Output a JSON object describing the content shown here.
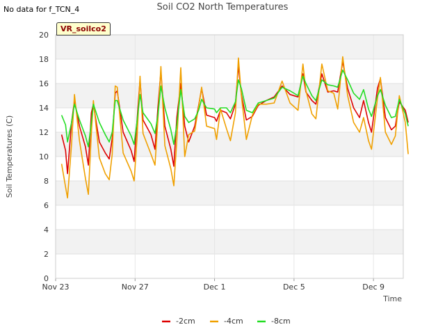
{
  "no_data_text": "No data for f_TCN_4",
  "badge_text": "VR_soilco2",
  "colors": {
    "s1": "#dd0000",
    "s2": "#f0a000",
    "s3": "#22dd22",
    "band": "#f2f2f2"
  },
  "chart_data": {
    "type": "line",
    "title": "Soil CO2 North Temperatures",
    "xlabel": "Time",
    "ylabel": "Soil Temperatures (C)",
    "ylim": [
      0,
      20
    ],
    "yticks": [
      0,
      2,
      4,
      6,
      8,
      10,
      12,
      14,
      16,
      18,
      20
    ],
    "xlim": [
      0,
      17.5
    ],
    "xticks": [
      {
        "value": 0,
        "label": "Nov 23"
      },
      {
        "value": 4,
        "label": "Nov 27"
      },
      {
        "value": 8,
        "label": "Dec 1"
      },
      {
        "value": 12,
        "label": "Dec 5"
      },
      {
        "value": 16,
        "label": "Dec 9"
      }
    ],
    "grid": true,
    "legend_position": "bottom",
    "x_unit": "days since Nov 23",
    "series": [
      {
        "name": "-2cm",
        "color": "#dd0000",
        "points": [
          [
            0.3,
            11.8
          ],
          [
            0.5,
            10.5
          ],
          [
            0.6,
            8.6
          ],
          [
            0.8,
            12.8
          ],
          [
            0.95,
            14.6
          ],
          [
            1.2,
            12.5
          ],
          [
            1.5,
            10.8
          ],
          [
            1.65,
            9.3
          ],
          [
            1.8,
            13.6
          ],
          [
            1.9,
            14.3
          ],
          [
            2.2,
            11.2
          ],
          [
            2.5,
            10.3
          ],
          [
            2.7,
            9.8
          ],
          [
            2.85,
            11.5
          ],
          [
            3.0,
            15.2
          ],
          [
            3.1,
            15.4
          ],
          [
            3.4,
            12.0
          ],
          [
            3.8,
            10.5
          ],
          [
            3.95,
            9.6
          ],
          [
            4.1,
            13.0
          ],
          [
            4.25,
            16.3
          ],
          [
            4.4,
            13.0
          ],
          [
            4.8,
            11.8
          ],
          [
            5.0,
            10.6
          ],
          [
            5.15,
            14.0
          ],
          [
            5.3,
            17.0
          ],
          [
            5.5,
            12.5
          ],
          [
            5.8,
            10.6
          ],
          [
            5.95,
            9.2
          ],
          [
            6.1,
            13.2
          ],
          [
            6.3,
            16.0
          ],
          [
            6.5,
            12.5
          ],
          [
            6.7,
            11.2
          ],
          [
            7.0,
            12.5
          ],
          [
            7.2,
            14.2
          ],
          [
            7.35,
            15.6
          ],
          [
            7.6,
            13.4
          ],
          [
            8.0,
            13.2
          ],
          [
            8.1,
            12.9
          ],
          [
            8.3,
            13.8
          ],
          [
            8.6,
            13.6
          ],
          [
            8.8,
            13.1
          ],
          [
            9.05,
            14.3
          ],
          [
            9.2,
            17.5
          ],
          [
            9.35,
            15.1
          ],
          [
            9.6,
            13.0
          ],
          [
            9.9,
            13.3
          ],
          [
            10.2,
            14.2
          ],
          [
            10.6,
            14.6
          ],
          [
            11.0,
            14.9
          ],
          [
            11.4,
            15.8
          ],
          [
            11.8,
            15.1
          ],
          [
            12.2,
            14.9
          ],
          [
            12.45,
            16.8
          ],
          [
            12.6,
            15.3
          ],
          [
            12.9,
            14.6
          ],
          [
            13.1,
            14.3
          ],
          [
            13.4,
            16.8
          ],
          [
            13.7,
            15.3
          ],
          [
            14.0,
            15.4
          ],
          [
            14.2,
            15.3
          ],
          [
            14.45,
            17.8
          ],
          [
            14.7,
            15.6
          ],
          [
            15.0,
            14.0
          ],
          [
            15.3,
            13.2
          ],
          [
            15.5,
            14.6
          ],
          [
            15.75,
            12.8
          ],
          [
            15.9,
            12.0
          ],
          [
            16.2,
            15.6
          ],
          [
            16.35,
            16.4
          ],
          [
            16.6,
            13.2
          ],
          [
            16.9,
            12.2
          ],
          [
            17.1,
            12.5
          ],
          [
            17.3,
            14.5
          ],
          [
            17.6,
            13.8
          ],
          [
            17.75,
            12.8
          ]
        ]
      },
      {
        "name": "-4cm",
        "color": "#f0a000",
        "points": [
          [
            0.3,
            9.4
          ],
          [
            0.5,
            7.5
          ],
          [
            0.6,
            6.6
          ],
          [
            0.8,
            11.0
          ],
          [
            0.95,
            15.1
          ],
          [
            1.2,
            11.3
          ],
          [
            1.5,
            8.2
          ],
          [
            1.65,
            6.9
          ],
          [
            1.8,
            11.9
          ],
          [
            1.9,
            14.6
          ],
          [
            2.2,
            9.9
          ],
          [
            2.5,
            8.6
          ],
          [
            2.7,
            8.1
          ],
          [
            2.85,
            10.2
          ],
          [
            3.0,
            15.8
          ],
          [
            3.1,
            15.7
          ],
          [
            3.4,
            10.3
          ],
          [
            3.8,
            8.8
          ],
          [
            3.95,
            8.0
          ],
          [
            4.1,
            11.5
          ],
          [
            4.25,
            16.6
          ],
          [
            4.4,
            11.9
          ],
          [
            4.8,
            10.2
          ],
          [
            5.0,
            9.3
          ],
          [
            5.15,
            13.0
          ],
          [
            5.3,
            17.4
          ],
          [
            5.5,
            10.9
          ],
          [
            5.8,
            9.0
          ],
          [
            5.95,
            7.6
          ],
          [
            6.1,
            11.3
          ],
          [
            6.3,
            17.3
          ],
          [
            6.5,
            10.0
          ],
          [
            6.7,
            11.8
          ],
          [
            7.0,
            12.1
          ],
          [
            7.2,
            14.1
          ],
          [
            7.35,
            15.7
          ],
          [
            7.6,
            12.5
          ],
          [
            8.0,
            12.3
          ],
          [
            8.1,
            11.4
          ],
          [
            8.3,
            13.9
          ],
          [
            8.6,
            12.3
          ],
          [
            8.8,
            11.3
          ],
          [
            9.05,
            13.6
          ],
          [
            9.2,
            18.1
          ],
          [
            9.35,
            15.0
          ],
          [
            9.6,
            11.4
          ],
          [
            9.9,
            13.4
          ],
          [
            10.2,
            14.3
          ],
          [
            10.6,
            14.3
          ],
          [
            11.0,
            14.4
          ],
          [
            11.4,
            16.2
          ],
          [
            11.8,
            14.4
          ],
          [
            12.2,
            13.8
          ],
          [
            12.45,
            17.6
          ],
          [
            12.6,
            15.4
          ],
          [
            12.9,
            13.5
          ],
          [
            13.1,
            13.1
          ],
          [
            13.4,
            17.6
          ],
          [
            13.7,
            15.4
          ],
          [
            14.0,
            15.2
          ],
          [
            14.2,
            13.9
          ],
          [
            14.45,
            18.2
          ],
          [
            14.7,
            15.0
          ],
          [
            15.0,
            12.8
          ],
          [
            15.3,
            12.0
          ],
          [
            15.5,
            13.2
          ],
          [
            15.75,
            11.3
          ],
          [
            15.9,
            10.6
          ],
          [
            16.2,
            14.8
          ],
          [
            16.35,
            16.5
          ],
          [
            16.6,
            12.0
          ],
          [
            16.9,
            11.0
          ],
          [
            17.1,
            11.7
          ],
          [
            17.3,
            15.0
          ],
          [
            17.6,
            12.8
          ],
          [
            17.75,
            10.2
          ]
        ]
      },
      {
        "name": "-8cm",
        "color": "#22dd22",
        "points": [
          [
            0.3,
            13.4
          ],
          [
            0.5,
            12.6
          ],
          [
            0.6,
            11.2
          ],
          [
            0.8,
            12.8
          ],
          [
            0.95,
            14.3
          ],
          [
            1.2,
            13.0
          ],
          [
            1.5,
            11.7
          ],
          [
            1.65,
            10.8
          ],
          [
            1.8,
            12.8
          ],
          [
            1.9,
            14.3
          ],
          [
            2.2,
            12.8
          ],
          [
            2.5,
            11.8
          ],
          [
            2.7,
            11.2
          ],
          [
            2.85,
            12.0
          ],
          [
            3.0,
            14.6
          ],
          [
            3.1,
            14.6
          ],
          [
            3.4,
            13.0
          ],
          [
            3.8,
            11.7
          ],
          [
            3.95,
            11.0
          ],
          [
            4.1,
            12.9
          ],
          [
            4.25,
            15.1
          ],
          [
            4.4,
            13.6
          ],
          [
            4.8,
            12.7
          ],
          [
            5.0,
            11.9
          ],
          [
            5.15,
            13.4
          ],
          [
            5.3,
            15.8
          ],
          [
            5.5,
            14.0
          ],
          [
            5.8,
            12.2
          ],
          [
            5.95,
            11.0
          ],
          [
            6.1,
            12.6
          ],
          [
            6.3,
            15.5
          ],
          [
            6.5,
            13.3
          ],
          [
            6.7,
            12.8
          ],
          [
            7.0,
            13.1
          ],
          [
            7.2,
            13.8
          ],
          [
            7.35,
            14.7
          ],
          [
            7.6,
            14.0
          ],
          [
            8.0,
            13.9
          ],
          [
            8.1,
            13.6
          ],
          [
            8.3,
            14.0
          ],
          [
            8.6,
            14.0
          ],
          [
            8.8,
            13.6
          ],
          [
            9.05,
            14.5
          ],
          [
            9.2,
            16.3
          ],
          [
            9.35,
            15.6
          ],
          [
            9.6,
            13.8
          ],
          [
            9.9,
            13.6
          ],
          [
            10.2,
            14.4
          ],
          [
            10.6,
            14.6
          ],
          [
            11.0,
            14.8
          ],
          [
            11.4,
            15.7
          ],
          [
            11.8,
            15.4
          ],
          [
            12.2,
            15.0
          ],
          [
            12.45,
            16.6
          ],
          [
            12.6,
            16.0
          ],
          [
            12.9,
            15.0
          ],
          [
            13.1,
            14.6
          ],
          [
            13.4,
            16.3
          ],
          [
            13.7,
            15.9
          ],
          [
            14.0,
            15.8
          ],
          [
            14.2,
            15.7
          ],
          [
            14.45,
            17.1
          ],
          [
            14.7,
            16.3
          ],
          [
            15.0,
            15.2
          ],
          [
            15.3,
            14.7
          ],
          [
            15.5,
            15.5
          ],
          [
            15.75,
            13.9
          ],
          [
            15.9,
            13.3
          ],
          [
            16.2,
            15.0
          ],
          [
            16.35,
            15.5
          ],
          [
            16.6,
            14.2
          ],
          [
            16.9,
            13.2
          ],
          [
            17.1,
            13.3
          ],
          [
            17.3,
            14.7
          ],
          [
            17.6,
            13.5
          ],
          [
            17.75,
            12.5
          ]
        ]
      }
    ]
  }
}
